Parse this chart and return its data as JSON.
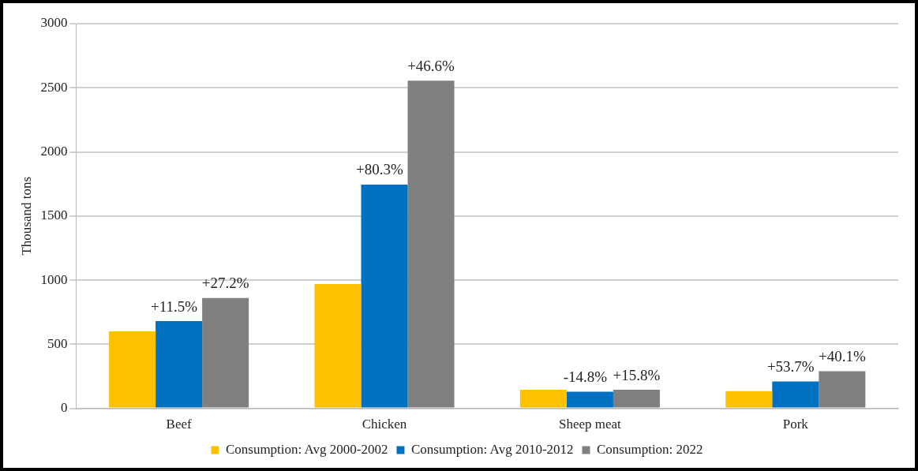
{
  "chart_data": {
    "type": "bar",
    "ylabel": "Thousand tons",
    "categories": [
      "Beef",
      "Chicken",
      "Sheep meat",
      "Pork"
    ],
    "series": [
      {
        "name": "Consumption: Avg 2000-2002",
        "color": "#ffc000",
        "values": [
          600,
          970,
          145,
          135
        ]
      },
      {
        "name": "Consumption: Avg 2010-2012",
        "color": "#0070c0",
        "values": [
          680,
          1745,
          130,
          210
        ]
      },
      {
        "name": "Consumption: 2022",
        "color": "#808080",
        "values": [
          860,
          2555,
          145,
          290
        ]
      }
    ],
    "annotations": [
      {
        "text": "+11.5%",
        "x": "Beef",
        "y": 680
      },
      {
        "text": "+80.3%",
        "x": "Chicken",
        "y": 1745
      },
      {
        "text": "-14.8%",
        "x": "Sheep meat",
        "y": 130
      },
      {
        "text": "+53.7%",
        "x": "Pork",
        "y": 210
      },
      "+27.2%",
      "+46.6%",
      "+15.8%",
      "+40.1%"
    ],
    "ylim": [
      0,
      3000
    ],
    "yticks": [
      0,
      500,
      1000,
      1500,
      2000,
      2500,
      3000
    ],
    "grid": "y",
    "legend": "bottom"
  }
}
